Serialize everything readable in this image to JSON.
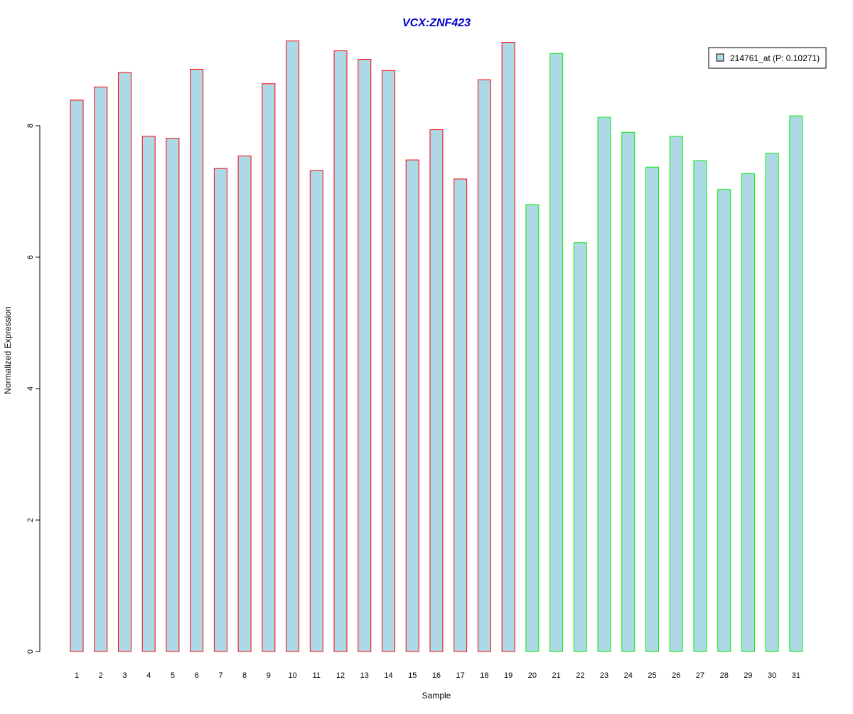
{
  "chart_data": {
    "type": "bar",
    "title": "VCX:ZNF423",
    "xlabel": "Sample",
    "ylabel": "Normalized Expression",
    "categories": [
      "1",
      "2",
      "3",
      "4",
      "5",
      "6",
      "7",
      "8",
      "9",
      "10",
      "11",
      "12",
      "13",
      "14",
      "15",
      "16",
      "17",
      "18",
      "19",
      "20",
      "21",
      "22",
      "23",
      "24",
      "25",
      "26",
      "27",
      "28",
      "29",
      "30",
      "31"
    ],
    "series": [
      {
        "name": "214761_at (P: 0.10271)",
        "values": [
          8.39,
          8.59,
          8.81,
          7.84,
          7.81,
          8.86,
          7.35,
          7.54,
          8.64,
          9.29,
          7.32,
          9.14,
          9.01,
          8.84,
          7.48,
          7.94,
          7.19,
          8.7,
          9.27,
          6.8,
          9.1,
          6.22,
          8.13,
          7.9,
          7.37,
          7.84,
          7.47,
          7.03,
          7.27,
          7.58,
          8.15
        ]
      }
    ],
    "groups": [
      {
        "samples": [
          1,
          19
        ],
        "border_color": "#ff0000"
      },
      {
        "samples": [
          20,
          31
        ],
        "border_color": "#00ee00"
      }
    ],
    "yticks": [
      "0",
      "2",
      "4",
      "6",
      "8"
    ],
    "ylim": [
      0,
      9.3
    ],
    "grid": false,
    "legend_position": "top-right",
    "colors": {
      "bar_fill": "#add8e6",
      "title": "#0000cd",
      "group1_border": "#ff0000",
      "group2_border": "#00ee00"
    }
  }
}
